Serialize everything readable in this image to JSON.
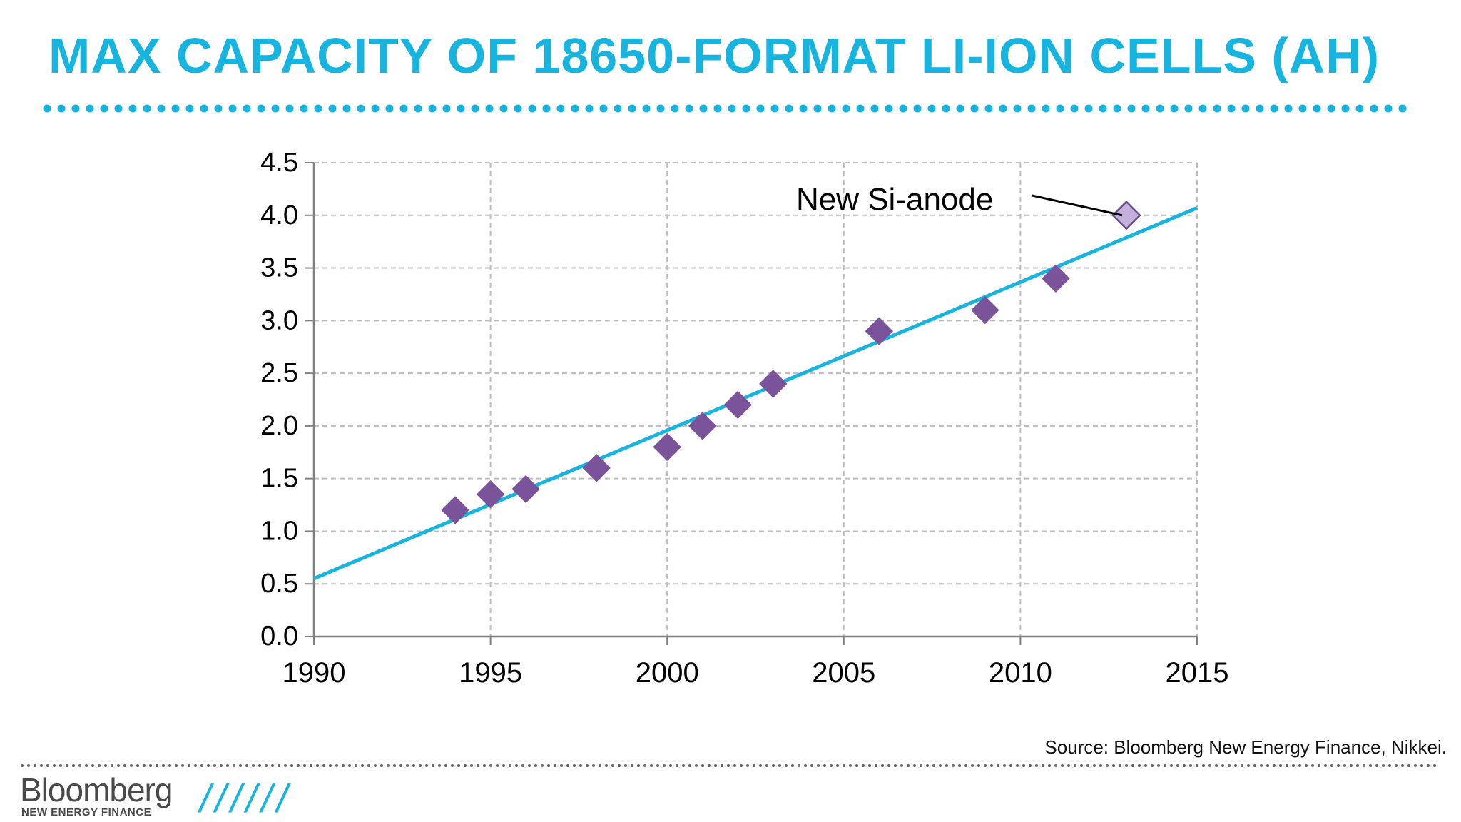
{
  "header": {
    "title": "MAX CAPACITY OF 18650-FORMAT LI-ION CELLS (AH)"
  },
  "footer": {
    "source": "Source: Bloomberg New Energy Finance, Nikkei.",
    "logo_name": "Bloomberg",
    "logo_sub": "NEW ENERGY FINANCE",
    "slashes": "//////"
  },
  "colors": {
    "accent": "#17b4e0",
    "marker": "#7b539b",
    "marker_highlight": "#c3b0dd",
    "grid": "#bdbdbd"
  },
  "chart_data": {
    "type": "scatter",
    "title": "",
    "xlabel": "",
    "ylabel": "",
    "xlim": [
      1990,
      2015
    ],
    "ylim": [
      0,
      4.5
    ],
    "xticks": [
      "1990",
      "1995",
      "2000",
      "2005",
      "2010",
      "2015"
    ],
    "yticks": [
      "0.0",
      "0.5",
      "1.0",
      "1.5",
      "2.0",
      "2.5",
      "3.0",
      "3.5",
      "4.0",
      "4.5"
    ],
    "grid": true,
    "series": [
      {
        "marker": "diamond",
        "x": [
          1994,
          1995,
          1996,
          1998,
          2000,
          2001,
          2002,
          2003,
          2006,
          2009,
          2011
        ],
        "y": [
          1.2,
          1.35,
          1.4,
          1.6,
          1.8,
          2.0,
          2.2,
          2.4,
          2.9,
          3.1,
          3.4
        ]
      },
      {
        "marker": "diamond-open",
        "x": [
          2013
        ],
        "y": [
          4.0
        ]
      }
    ],
    "trendline": {
      "x": [
        1990,
        2015
      ],
      "y": [
        0.55,
        4.07
      ]
    },
    "annotations": [
      {
        "text": "New Si-anode",
        "x": 2013,
        "y": 4.0
      }
    ]
  }
}
